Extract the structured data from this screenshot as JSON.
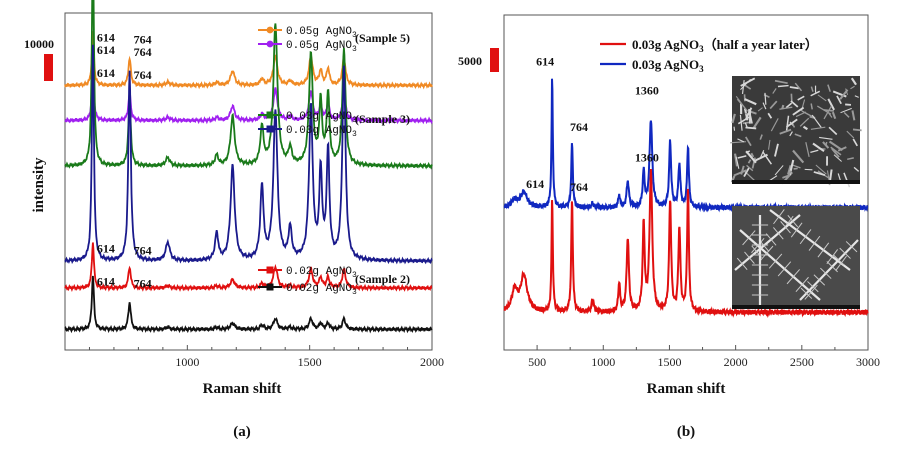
{
  "colors": {
    "orange": "#f08a24",
    "purple": "#a020f0",
    "green": "#1a7a1a",
    "navy": "#1a1a8c",
    "red": "#e01010",
    "black": "#111111",
    "blue": "#1028c0",
    "scale_bar": "#e01010"
  },
  "chart_data": [
    {
      "panel": "(a)",
      "type": "line",
      "xlabel": "Raman shift",
      "ylabel": "intensity",
      "xlim": [
        500,
        2000
      ],
      "xticks": [
        "1000",
        "1500",
        "2000"
      ],
      "scale_bar": "10000",
      "sample_tags": [
        "(Sample 5)",
        "(Sample 3)",
        "(Sample 2)"
      ],
      "legends": [
        {
          "entries": [
            {
              "base": "0.05g AgNO",
              "sub": "3"
            },
            {
              "base": "0.05g AgNO",
              "sub": "3"
            }
          ]
        },
        {
          "entries": [
            {
              "base": "0.03g AgNO",
              "sub": "3"
            },
            {
              "base": "0.03g AgNO",
              "sub": "3"
            }
          ]
        },
        {
          "entries": [
            {
              "base": "0.02g AgNO",
              "sub": "3"
            },
            {
              "base": "0.02g AgNO",
              "sub": "3"
            }
          ]
        }
      ],
      "peaks": [
        614,
        764,
        920,
        1120,
        1185,
        1305,
        1360,
        1420,
        1505,
        1545,
        1575,
        1640
      ],
      "series": [
        {
          "name": "0.05g AgNO3 (orange)",
          "color_key": "orange",
          "offset": 10300,
          "peak_heights": [
            2600,
            1300,
            150,
            150,
            700,
            300,
            1400,
            200,
            1400,
            700,
            800,
            1300
          ]
        },
        {
          "name": "0.05g AgNO3 (purple)",
          "color_key": "purple",
          "offset": 8600,
          "peak_heights": [
            2600,
            1300,
            150,
            150,
            700,
            300,
            1500,
            200,
            1400,
            700,
            800,
            1300
          ]
        },
        {
          "name": "0.03g AgNO3 (green)",
          "color_key": "green",
          "offset": 6400,
          "peak_heights": [
            10500,
            3200,
            400,
            500,
            2400,
            1800,
            6800,
            800,
            5400,
            3000,
            3400,
            5600
          ]
        },
        {
          "name": "0.03g AgNO3 (navy)",
          "color_key": "navy",
          "offset": 1800,
          "peak_heights": [
            10500,
            9200,
            900,
            1300,
            4600,
            3500,
            7200,
            1500,
            7400,
            4200,
            5200,
            9300
          ]
        },
        {
          "name": "0.02g AgNO3 (red)",
          "color_key": "red",
          "offset": 500,
          "peak_heights": [
            2200,
            1000,
            100,
            100,
            400,
            200,
            1000,
            100,
            900,
            500,
            500,
            900
          ]
        },
        {
          "name": "0.02g AgNO3 (black)",
          "color_key": "black",
          "offset": -1500,
          "peak_heights": [
            2600,
            1300,
            100,
            100,
            300,
            200,
            500,
            100,
            500,
            300,
            300,
            500
          ]
        }
      ],
      "annotations": [
        {
          "series": 0,
          "texts": [
            "614",
            "764"
          ]
        },
        {
          "series": 1,
          "texts": [
            "614",
            "764"
          ]
        },
        {
          "series": 2,
          "texts": [
            "614",
            "764"
          ]
        },
        {
          "series": 3,
          "texts": [
            "614",
            "764"
          ]
        },
        {
          "series": 4,
          "texts": [
            "614",
            "764"
          ]
        },
        {
          "series": 5,
          "texts": [
            "614",
            "764"
          ]
        }
      ]
    },
    {
      "panel": "(b)",
      "type": "line",
      "xlabel": "Raman shift",
      "xlim": [
        250,
        3000
      ],
      "xticks": [
        "500",
        "1000",
        "1500",
        "2000",
        "2500",
        "3000"
      ],
      "scale_bar": "5000",
      "legend": [
        {
          "base": "0.03g AgNO",
          "sub": "3",
          "suffix": "（half a year later）",
          "color_key": "red"
        },
        {
          "base": "0.03g AgNO",
          "sub": "3",
          "suffix": "",
          "color_key": "blue"
        }
      ],
      "series": [
        {
          "name": "0.03g AgNO3 (half a year later)",
          "color_key": "red",
          "annotations": [
            "614",
            "764",
            "1360"
          ]
        },
        {
          "name": "0.03g AgNO3",
          "color_key": "blue",
          "annotations": [
            "614",
            "764",
            "1360"
          ]
        }
      ]
    }
  ]
}
